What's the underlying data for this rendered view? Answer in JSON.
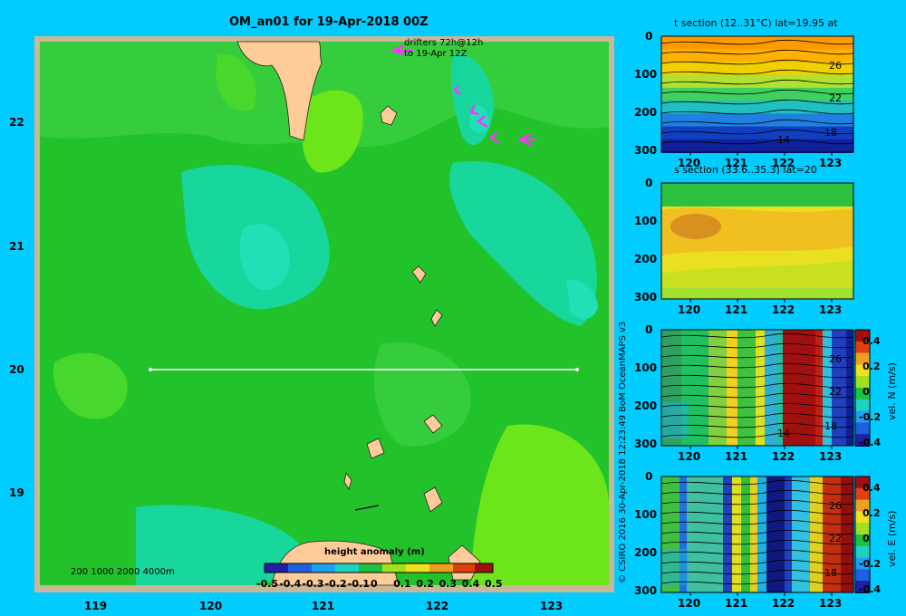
{
  "main_map": {
    "title": "OM_an01 for 19-Apr-2018 00Z",
    "drifters_label_1": "drifters 72h@12h",
    "drifters_label_2": "to 19-Apr 12Z",
    "depth_legend": "200  1000  2000  4000m",
    "colorbar_title": "height anomaly (m)",
    "colorbar_ticks": [
      "-0.5",
      "-0.4",
      "-0.3",
      "-0.2",
      "-0.1",
      "0",
      "0.1",
      "0.2",
      "0.3",
      "0.4",
      "0.5"
    ],
    "x_ticks": [
      "119",
      "120",
      "121",
      "122",
      "123"
    ],
    "y_ticks": [
      "22",
      "21",
      "20",
      "19"
    ],
    "section_line": {
      "lat": 20,
      "lon_start": 119.5,
      "lon_end": 123.2
    }
  },
  "credit": "© CSIRO 2016   30-Apr-2018 12:23:49 BoM OceanMAPS v3",
  "sections": [
    {
      "title": "t section (12..31°C) lat=19.95 at",
      "y_ticks": [
        "0",
        "100",
        "200",
        "300"
      ],
      "x_ticks": [
        "120",
        "121",
        "122",
        "123"
      ],
      "contour_labels": [
        "26",
        "22",
        "18",
        "14"
      ]
    },
    {
      "title": "s section (33.6..35.3) lat=20",
      "y_ticks": [
        "0",
        "100",
        "200",
        "300"
      ],
      "x_ticks": [
        "120",
        "121",
        "122",
        "123"
      ]
    },
    {
      "title": "",
      "y_ticks": [
        "0",
        "100",
        "200",
        "300"
      ],
      "x_ticks": [
        "120",
        "121",
        "122",
        "123"
      ],
      "contour_labels": [
        "26",
        "22",
        "18",
        "14"
      ],
      "cbar_label": "vel. N (m/s)",
      "cbar_ticks": [
        "0.4",
        "0.2",
        "0",
        "-0.2",
        "-0.4"
      ]
    },
    {
      "title": "",
      "y_ticks": [
        "0",
        "100",
        "200",
        "300"
      ],
      "x_ticks": [
        "120",
        "121",
        "122",
        "123"
      ],
      "contour_labels": [
        "26",
        "22",
        "18"
      ],
      "cbar_label": "vel. E (m/s)",
      "cbar_ticks": [
        "0.4",
        "0.2",
        "0",
        "-0.2",
        "-0.4"
      ]
    }
  ],
  "colors": {
    "background": "#00ccff",
    "land": "#ffcc99",
    "drifter": "#ff33ff"
  }
}
